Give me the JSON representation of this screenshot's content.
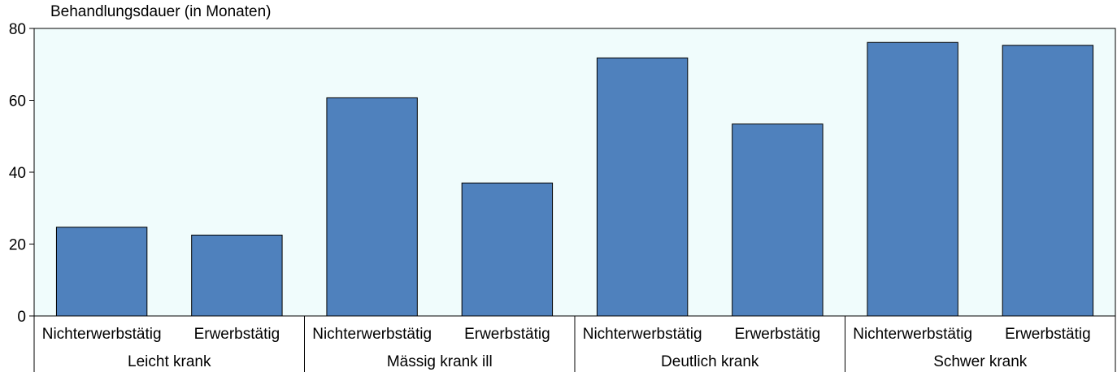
{
  "chart_data": {
    "type": "bar",
    "ylabel": "Behandlungsdauer (in Monaten)",
    "xlabel": "",
    "ylim": [
      0,
      80
    ],
    "yticks": [
      0,
      20,
      40,
      60,
      80
    ],
    "grid": false,
    "colors": {
      "bar": "#4f81bd",
      "plot_background": "#f0fcfc",
      "bar_border": "#000000"
    },
    "groups": [
      {
        "label": "Leicht krank",
        "categories": [
          "Nichterwerbstätig",
          "Erwerbstätig"
        ],
        "values": [
          24.7,
          22.5
        ]
      },
      {
        "label": "Mässig krank ill",
        "categories": [
          "Nichterwerbstätig",
          "Erwerbstätig"
        ],
        "values": [
          60.7,
          37.0
        ]
      },
      {
        "label": "Deutlich krank",
        "categories": [
          "Nichterwerbstätig",
          "Erwerbstätig"
        ],
        "values": [
          71.8,
          53.4
        ]
      },
      {
        "label": "Schwer krank",
        "categories": [
          "Nichterwerbstätig",
          "Erwerbstätig"
        ],
        "values": [
          76.1,
          75.3
        ]
      }
    ]
  }
}
